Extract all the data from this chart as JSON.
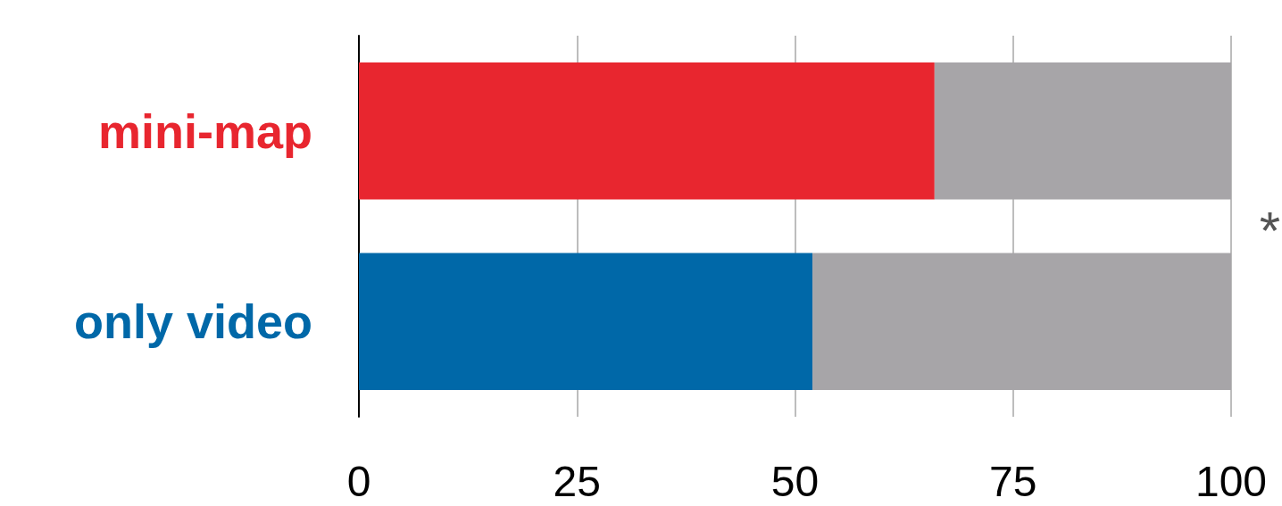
{
  "chart_data": {
    "type": "bar",
    "orientation": "horizontal",
    "stacked": true,
    "categories": [
      "mini-map",
      "only video"
    ],
    "series": [
      {
        "colors": [
          "#e8262f",
          "#0068a8"
        ],
        "values": [
          66,
          52
        ]
      },
      {
        "color": "#a7a5a8",
        "values": [
          34,
          48
        ]
      }
    ],
    "xlim": [
      0,
      100
    ],
    "xticks": [
      0,
      25,
      50,
      75,
      100
    ],
    "grid": "x",
    "annotations": [
      "*"
    ]
  }
}
